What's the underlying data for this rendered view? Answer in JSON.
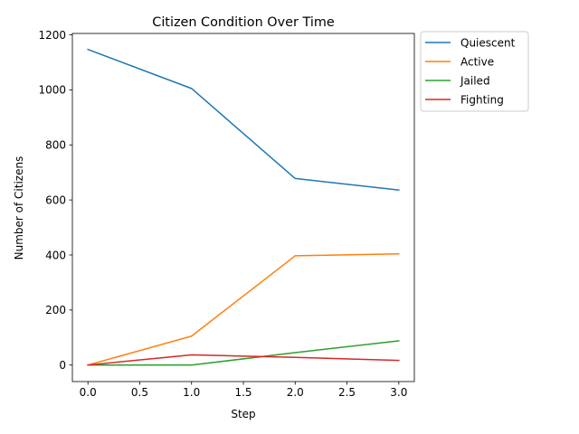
{
  "chart_data": {
    "type": "line",
    "title": "Citizen Condition Over Time",
    "xlabel": "Step",
    "ylabel": "Number of Citizens",
    "x": [
      0,
      1,
      2,
      3
    ],
    "xlim": [
      -0.15,
      3.15
    ],
    "ylim": [
      -60,
      1205
    ],
    "xticks": [
      0.0,
      0.5,
      1.0,
      1.5,
      2.0,
      2.5,
      3.0
    ],
    "xtick_labels": [
      "0.0",
      "0.5",
      "1.0",
      "1.5",
      "2.0",
      "2.5",
      "3.0"
    ],
    "yticks": [
      0,
      200,
      400,
      600,
      800,
      1000,
      1200
    ],
    "ytick_labels": [
      "0",
      "200",
      "400",
      "600",
      "800",
      "1000",
      "1200"
    ],
    "grid": false,
    "legend_position": "outside-top-right",
    "series": [
      {
        "name": "Quiescent",
        "color": "#1f77b4",
        "values": [
          1147,
          1005,
          678,
          636
        ]
      },
      {
        "name": "Active",
        "color": "#ff7f0e",
        "values": [
          0,
          105,
          397,
          404
        ]
      },
      {
        "name": "Jailed",
        "color": "#2ca02c",
        "values": [
          0,
          0,
          45,
          88
        ]
      },
      {
        "name": "Fighting",
        "color": "#d62728",
        "values": [
          0,
          37,
          28,
          17
        ]
      }
    ]
  }
}
